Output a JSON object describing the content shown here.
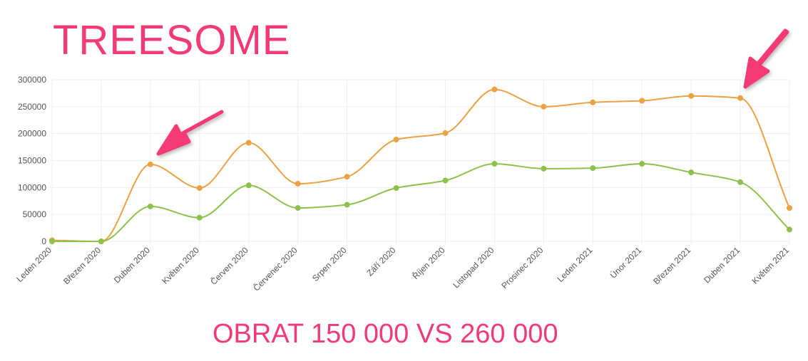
{
  "header": {
    "title": "TREESOME"
  },
  "footer": {
    "caption": "OBRAT 150 000 VS 260 000"
  },
  "colors": {
    "accent": "#f23a74",
    "series_orange": "#eaa244",
    "series_green": "#8cc24c",
    "grid": "#eeeeee",
    "tick_text": "#555555"
  },
  "chart_data": {
    "type": "line",
    "title": "",
    "xlabel": "",
    "ylabel": "",
    "ylim": [
      0,
      300000
    ],
    "yticks": [
      "300000",
      "250000",
      "200000",
      "150000",
      "100000",
      "50000",
      "0"
    ],
    "yticks_values": [
      300000,
      250000,
      200000,
      150000,
      100000,
      50000,
      0
    ],
    "grid": true,
    "legend": "none",
    "categories": [
      "Leden 2020",
      "Březen 2020",
      "Duben 2020",
      "Květen 2020",
      "Červen 2020",
      "Červenec 2020",
      "Srpen 2020",
      "Září 2020",
      "Říjen 2020",
      "Listopad 2020",
      "Prosinec 2020",
      "Leden 2021",
      "Únor 2021",
      "Březen 2021",
      "Duben 2021",
      "Květen 2021"
    ],
    "series": [
      {
        "color": "#eaa244",
        "values": [
          2000,
          0,
          143000,
          99000,
          183000,
          107000,
          120000,
          189000,
          201000,
          282000,
          250000,
          258000,
          261000,
          270000,
          266000,
          62000
        ]
      },
      {
        "color": "#8cc24c",
        "values": [
          0,
          0,
          65000,
          44000,
          104000,
          62000,
          68000,
          99000,
          113000,
          144000,
          135000,
          136000,
          144000,
          128000,
          110000,
          22000
        ]
      }
    ]
  }
}
